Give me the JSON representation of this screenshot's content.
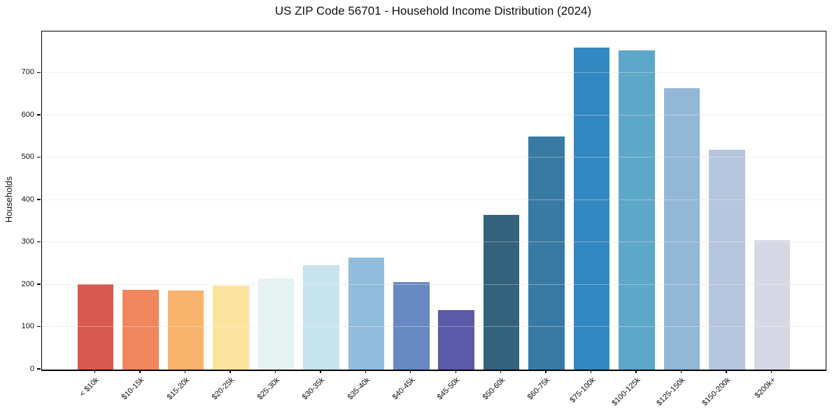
{
  "chart_data": {
    "type": "bar",
    "title": "US ZIP Code 56701 - Household Income Distribution (2024)",
    "xlabel": "",
    "ylabel": "Households",
    "categories": [
      "< $10k",
      "$10-15k",
      "$15-20k",
      "$20-25k",
      "$25-30k",
      "$30-35k",
      "$35-40k",
      "$40-45k",
      "$45-50k",
      "$50-60k",
      "$60-75k",
      "$75-100k",
      "$100-125k",
      "$125-150k",
      "$150-200k",
      "$200k+"
    ],
    "values": [
      202,
      189,
      187,
      199,
      214,
      246,
      265,
      207,
      140,
      365,
      550,
      760,
      754,
      664,
      519,
      306
    ],
    "bar_colors": [
      "#d65a50",
      "#f0875f",
      "#f8b36c",
      "#fce4a0",
      "#e6f2f1",
      "#c6e3ee",
      "#92bcdb",
      "#6788c1",
      "#5b59a8",
      "#34617c",
      "#387aa3",
      "#3488c1",
      "#5da7c9",
      "#93b7d7",
      "#b6c6df",
      "#d7d8e6"
    ],
    "ylim": [
      0,
      798
    ],
    "yticks": [
      0,
      100,
      200,
      300,
      400,
      500,
      600,
      700
    ],
    "grid": "horizontal-only",
    "grid_color": "#e8e8e8",
    "axis_color": "#000000",
    "background": "#ffffff",
    "legend": "none",
    "x_tick_rotation_deg": 45
  }
}
